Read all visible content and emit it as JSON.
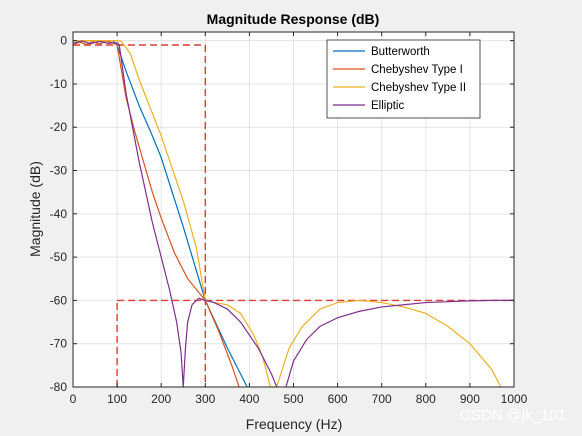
{
  "chart_data": {
    "type": "line",
    "title": "Magnitude Response (dB)",
    "xlabel": "Frequency (Hz)",
    "ylabel": "Magnitude (dB)",
    "xlim": [
      0,
      1000
    ],
    "ylim": [
      -80,
      2
    ],
    "xticks": [
      0,
      100,
      200,
      300,
      400,
      500,
      600,
      700,
      800,
      900,
      1000
    ],
    "yticks": [
      0,
      -10,
      -20,
      -30,
      -40,
      -50,
      -60,
      -70,
      -80
    ],
    "grid": true,
    "legend_position": "top-right",
    "series": [
      {
        "name": "Butterworth",
        "color": "#0072BD",
        "x": [
          0,
          50,
          90,
          100,
          120,
          150,
          180,
          200,
          250,
          300,
          350,
          400
        ],
        "y": [
          0,
          0,
          0,
          -1,
          -7,
          -15,
          -22,
          -27,
          -43,
          -60,
          -71,
          -81
        ]
      },
      {
        "name": "Chebyshev Type I",
        "color": "#D95319",
        "x": [
          0,
          15,
          30,
          45,
          60,
          75,
          90,
          100,
          110,
          120,
          140,
          160,
          180,
          200,
          230,
          260,
          300,
          330,
          360,
          380
        ],
        "y": [
          -1,
          -0.3,
          -0.9,
          -0.2,
          -0.8,
          -0.1,
          -0.5,
          -1,
          -7,
          -13,
          -21,
          -28,
          -35,
          -41,
          -49,
          -55,
          -60,
          -67,
          -75,
          -81
        ]
      },
      {
        "name": "Chebyshev Type II",
        "color": "#EDB120",
        "x": [
          0,
          50,
          100,
          110,
          130,
          150,
          200,
          250,
          280,
          300,
          320,
          350,
          380,
          410,
          430,
          445,
          455,
          465,
          490,
          520,
          560,
          600,
          650,
          700,
          750,
          800,
          850,
          900,
          950,
          980
        ],
        "y": [
          0,
          0,
          0,
          -0.2,
          -3,
          -9,
          -22,
          -37,
          -48,
          -60,
          -60.5,
          -61,
          -63,
          -68,
          -73,
          -79,
          -82,
          -79,
          -71,
          -66,
          -62,
          -60.5,
          -60,
          -60.5,
          -61.5,
          -63,
          -66,
          -70,
          -76,
          -82
        ],
        "breaks_at": [
          455
        ]
      },
      {
        "name": "Elliptic",
        "color": "#7E2F8E",
        "x": [
          0,
          20,
          40,
          60,
          80,
          100,
          105,
          120,
          150,
          180,
          200,
          220,
          235,
          245,
          250,
          255,
          260,
          270,
          285,
          300,
          320,
          350,
          380,
          420,
          450,
          470,
          480,
          500,
          530,
          560,
          600,
          650,
          700,
          750,
          800,
          850,
          900,
          950,
          1000
        ],
        "y": [
          -0.6,
          -0.1,
          -0.7,
          -0.2,
          -0.6,
          -0.5,
          -1,
          -12,
          -28,
          -42,
          -50,
          -58,
          -65,
          -72,
          -80,
          -71,
          -65,
          -61,
          -59.5,
          -60,
          -60.5,
          -62,
          -65,
          -71,
          -77,
          -82,
          -81,
          -74,
          -69,
          -66,
          -64,
          -62.5,
          -61.5,
          -61,
          -60.5,
          -60.3,
          -60.1,
          -60,
          -60
        ],
        "breaks_at": [
          250,
          475
        ]
      }
    ],
    "annotations": [
      {
        "kind": "spec-mask",
        "style": "dashed",
        "color": "#E03C31",
        "segments": [
          [
            [
              0,
              -1
            ],
            [
              300,
              -1
            ]
          ],
          [
            [
              300,
              -1
            ],
            [
              300,
              -80
            ]
          ],
          [
            [
              100,
              -80
            ],
            [
              100,
              -60
            ]
          ],
          [
            [
              100,
              -60
            ],
            [
              1000,
              -60
            ]
          ]
        ]
      }
    ]
  },
  "watermark": {
    "text": "CSDN @jk_101"
  }
}
